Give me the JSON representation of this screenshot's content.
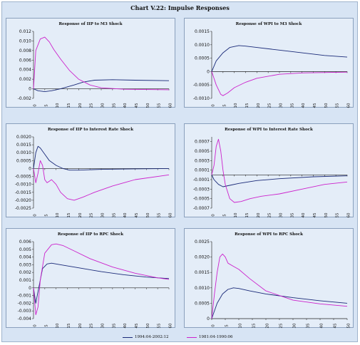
{
  "title": "Chart V.22: Impulse Responses",
  "legend": {
    "series1": "1994:04-2002:12",
    "series2": "1981:04-1990:06"
  },
  "colors": {
    "series1": "#1a2a78",
    "series2": "#cc22cc"
  },
  "chart_data": [
    {
      "type": "line",
      "title": "Response of IIP to M3 Shock",
      "xticks": [
        0,
        5,
        10,
        15,
        20,
        25,
        30,
        35,
        40,
        45,
        50,
        55,
        60
      ],
      "yticks": [
        "0.012",
        "0.010",
        "0.008",
        "0.006",
        "0.004",
        "0.002",
        "0",
        "-0.002"
      ],
      "ylim": [
        -0.002,
        0.012
      ],
      "xlim": [
        0,
        60
      ],
      "series": [
        {
          "x": [
            0,
            2,
            5,
            8,
            12,
            18,
            22,
            27,
            35,
            45,
            60
          ],
          "values": [
            0,
            -0.0004,
            -0.0006,
            -0.0004,
            0,
            0.0008,
            0.0014,
            0.0018,
            0.0019,
            0.0018,
            0.0017
          ]
        },
        {
          "x": [
            0,
            1,
            3,
            5,
            7,
            9,
            12,
            16,
            20,
            25,
            30,
            40,
            60
          ],
          "values": [
            0,
            0.008,
            0.0104,
            0.0108,
            0.0098,
            0.0082,
            0.0062,
            0.0038,
            0.002,
            0.0008,
            0.0002,
            -0.0001,
            -0.0002
          ]
        }
      ]
    },
    {
      "type": "line",
      "title": "Response of WPI to M3 Shock",
      "xticks": [
        0,
        5,
        10,
        15,
        20,
        25,
        30,
        35,
        40,
        45,
        50,
        55,
        60
      ],
      "yticks": [
        "0.0015",
        "0.0010",
        "0.0005",
        "0",
        "-0.0005",
        "-0.0010"
      ],
      "ylim": [
        -0.001,
        0.0015
      ],
      "xlim": [
        0,
        60
      ],
      "series": [
        {
          "x": [
            0,
            2,
            5,
            8,
            12,
            15,
            20,
            30,
            40,
            50,
            60
          ],
          "values": [
            0,
            0.0004,
            0.0007,
            0.0009,
            0.00097,
            0.00095,
            0.0009,
            0.0008,
            0.0007,
            0.0006,
            0.00054
          ]
        },
        {
          "x": [
            0,
            2,
            4,
            5,
            7,
            10,
            15,
            20,
            30,
            40,
            60
          ],
          "values": [
            0,
            -0.0005,
            -0.00085,
            -0.0009,
            -0.0008,
            -0.0006,
            -0.0004,
            -0.00025,
            -0.0001,
            -5e-05,
            -2e-05
          ]
        }
      ]
    },
    {
      "type": "line",
      "title": "Response of IIP to Interest Rate Shock",
      "xticks": [
        0,
        5,
        10,
        15,
        20,
        25,
        30,
        35,
        40,
        45,
        50,
        55,
        60
      ],
      "yticks": [
        "0.0020",
        "0.0015",
        "0.0010",
        "0.0005",
        "0",
        "-0.0005",
        "-0.0010",
        "-0.0015",
        "-0.0020",
        "-0.0025"
      ],
      "ylim": [
        -0.0025,
        0.002
      ],
      "xlim": [
        0,
        60
      ],
      "series": [
        {
          "x": [
            0,
            1,
            2,
            3,
            5,
            7,
            10,
            13,
            16,
            20,
            30,
            45,
            60
          ],
          "values": [
            0,
            0.001,
            0.0014,
            0.0013,
            0.0009,
            0.0005,
            0.0002,
            0,
            -0.0001,
            -0.0001,
            -5e-05,
            -2e-05,
            0
          ]
        },
        {
          "x": [
            0,
            1,
            2,
            3,
            4,
            5,
            6,
            7,
            8,
            10,
            12,
            15,
            18,
            22,
            27,
            35,
            45,
            60
          ],
          "values": [
            0,
            -0.0009,
            -0.0003,
            0.0005,
            0.0002,
            -0.0007,
            -0.0009,
            -0.0008,
            -0.0007,
            -0.001,
            -0.0015,
            -0.0019,
            -0.002,
            -0.0018,
            -0.0015,
            -0.0011,
            -0.0007,
            -0.0004
          ]
        }
      ]
    },
    {
      "type": "line",
      "title": "Response of WPI to Interest Rate Shock",
      "xticks": [
        0,
        5,
        10,
        15,
        20,
        25,
        30,
        35,
        40,
        45,
        50,
        55,
        60
      ],
      "yticks": [
        "0.0007",
        "0.0005",
        "0.0003",
        "0.0001",
        "-0.0001",
        "-0.0003",
        "-0.0005",
        "-0.0007"
      ],
      "ylim": [
        -0.0007,
        0.0008
      ],
      "xlim": [
        0,
        60
      ],
      "series": [
        {
          "x": [
            0,
            1,
            2,
            3,
            5,
            8,
            12,
            20,
            30,
            45,
            60
          ],
          "values": [
            0,
            -0.0001,
            -0.00015,
            -0.0002,
            -0.00025,
            -0.00022,
            -0.00018,
            -0.00012,
            -8e-05,
            -4e-05,
            -2e-05
          ]
        },
        {
          "x": [
            0,
            1,
            2,
            3,
            4,
            5,
            6,
            8,
            10,
            13,
            17,
            22,
            30,
            40,
            50,
            60
          ],
          "values": [
            0,
            0.0002,
            0.0006,
            0.00075,
            0.0005,
            0.0001,
            -0.0002,
            -0.0005,
            -0.00058,
            -0.00056,
            -0.0005,
            -0.00045,
            -0.0004,
            -0.0003,
            -0.0002,
            -0.00015
          ]
        }
      ]
    },
    {
      "type": "line",
      "title": "Response of IIP to RPC Shock",
      "xticks": [
        0,
        5,
        10,
        15,
        20,
        25,
        30,
        35,
        40,
        45,
        50,
        55,
        60
      ],
      "yticks": [
        "0.006",
        "0.005",
        "0.004",
        "0.003",
        "0.002",
        "0.001",
        "0",
        "-0.001",
        "-0.002",
        "-0.003",
        "-0.004"
      ],
      "ylim": [
        -0.004,
        0.006
      ],
      "xlim": [
        0,
        60
      ],
      "series": [
        {
          "x": [
            0,
            1,
            2,
            4,
            6,
            8,
            12,
            20,
            30,
            40,
            50,
            60
          ],
          "values": [
            0,
            -0.002,
            -0.0005,
            0.0025,
            0.0031,
            0.0032,
            0.003,
            0.0026,
            0.0021,
            0.0017,
            0.0014,
            0.0012
          ]
        },
        {
          "x": [
            0,
            1,
            2,
            3,
            5,
            8,
            10,
            13,
            18,
            25,
            35,
            45,
            55,
            60
          ],
          "values": [
            0,
            -0.0035,
            -0.0025,
            0.001,
            0.0045,
            0.0056,
            0.0057,
            0.0055,
            0.0048,
            0.0038,
            0.0027,
            0.0019,
            0.0013,
            0.0011
          ]
        }
      ]
    },
    {
      "type": "line",
      "title": "Response of WPI to RPC Shock",
      "xticks": [
        0,
        5,
        10,
        15,
        20,
        25,
        30,
        35,
        40,
        45,
        50
      ],
      "yticks": [
        "0.0025",
        "0.0020",
        "0.0015",
        "0.0010",
        "0.0005",
        "0"
      ],
      "ylim": [
        0,
        0.0025
      ],
      "xlim": [
        0,
        50
      ],
      "series": [
        {
          "x": [
            0,
            2,
            4,
            6,
            8,
            10,
            14,
            20,
            30,
            40,
            50
          ],
          "values": [
            0,
            0.0005,
            0.0008,
            0.00095,
            0.001,
            0.00098,
            0.0009,
            0.0008,
            0.00068,
            0.00058,
            0.0005
          ]
        },
        {
          "x": [
            0,
            1,
            2,
            3,
            4,
            5,
            6,
            8,
            10,
            14,
            20,
            30,
            40,
            50
          ],
          "values": [
            0,
            0.0008,
            0.0015,
            0.002,
            0.0021,
            0.002,
            0.0018,
            0.0017,
            0.0016,
            0.0013,
            0.0009,
            0.0006,
            0.00048,
            0.0004
          ]
        }
      ]
    }
  ]
}
